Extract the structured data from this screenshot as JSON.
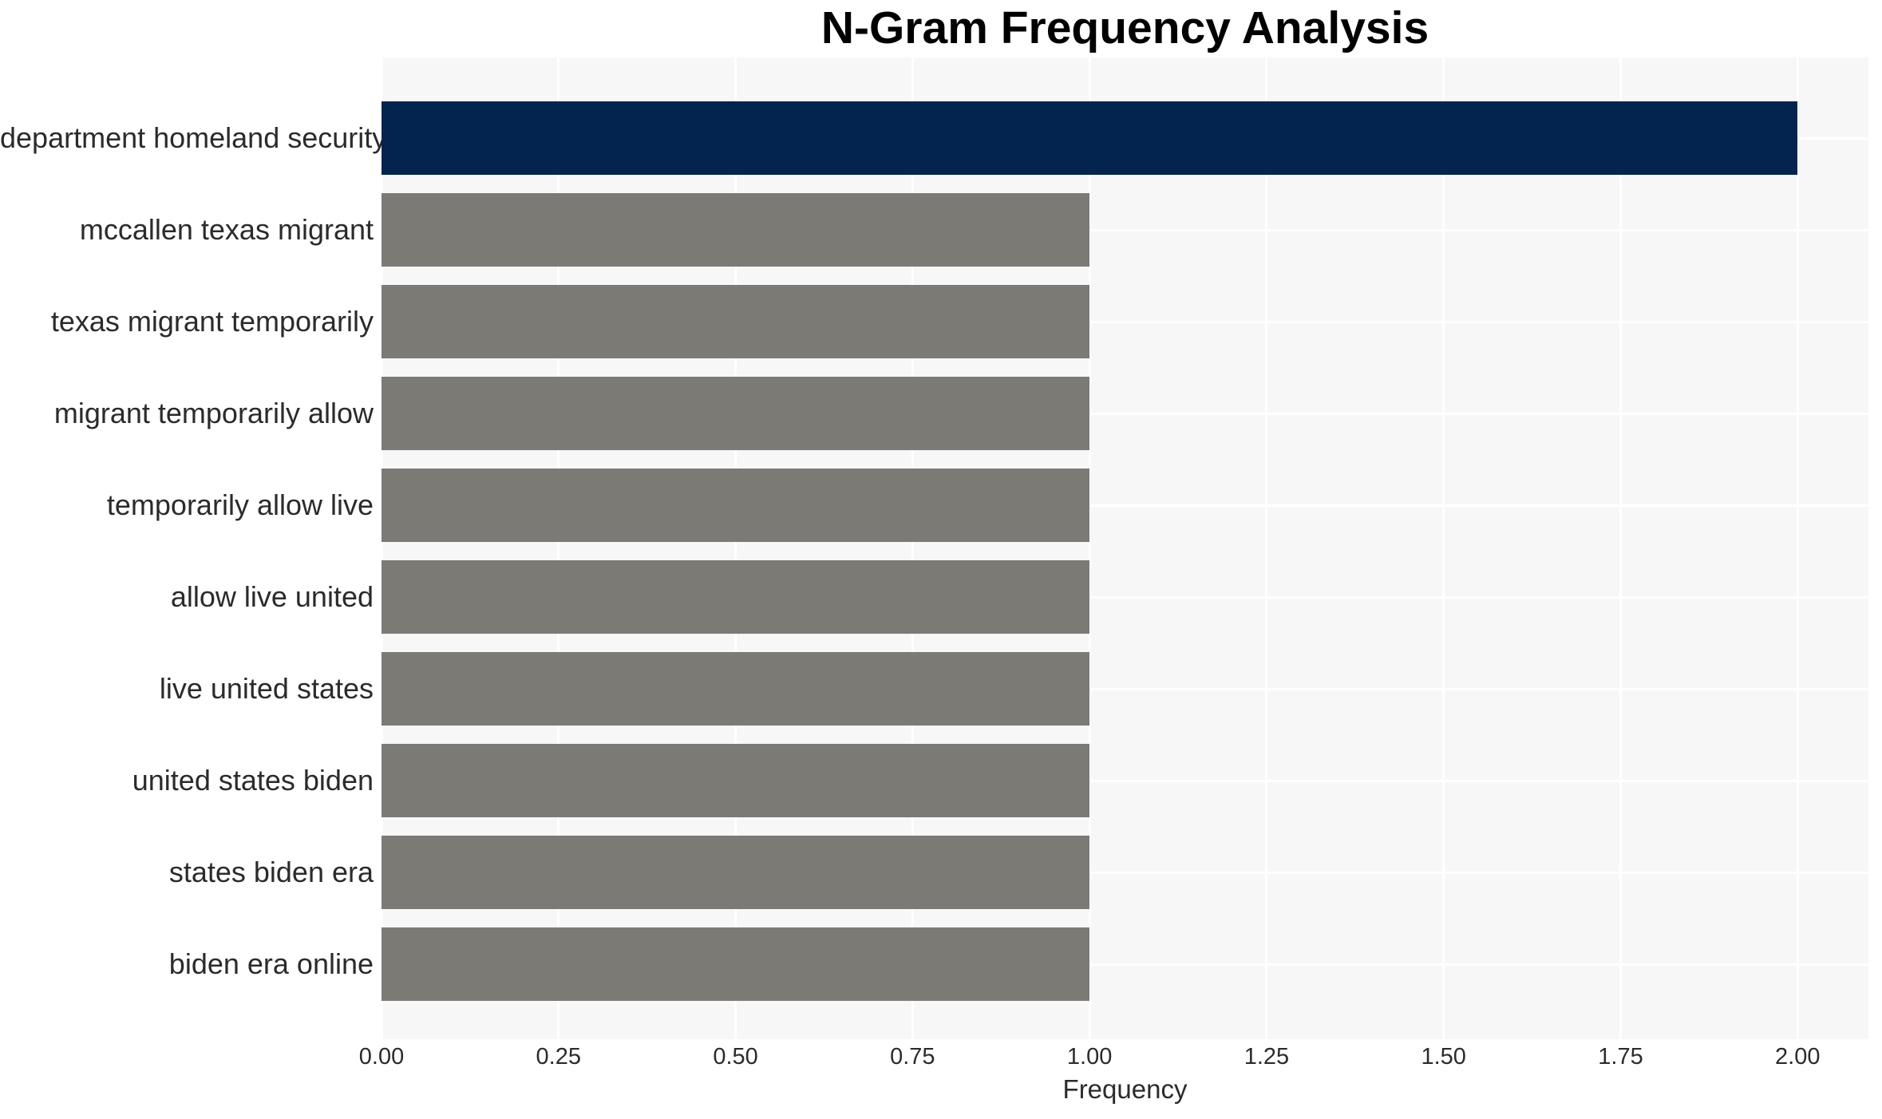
{
  "chart_data": {
    "type": "bar",
    "orientation": "horizontal",
    "title": "N-Gram Frequency Analysis",
    "xlabel": "Frequency",
    "ylabel": "",
    "categories": [
      "department homeland security",
      "mccallen texas migrant",
      "texas migrant temporarily",
      "migrant temporarily allow",
      "temporarily allow live",
      "allow live united",
      "live united states",
      "united states biden",
      "states biden era",
      "biden era online"
    ],
    "values": [
      2,
      1,
      1,
      1,
      1,
      1,
      1,
      1,
      1,
      1
    ],
    "bar_colors": [
      "#02244e",
      "#7b7a75",
      "#7b7a75",
      "#7b7a75",
      "#7b7a75",
      "#7b7a75",
      "#7b7a75",
      "#7b7a75",
      "#7b7a75",
      "#7b7a75"
    ],
    "xlim": [
      0,
      2.1
    ],
    "xticks": [
      "0.00",
      "0.25",
      "0.50",
      "0.75",
      "1.00",
      "1.25",
      "1.50",
      "1.75",
      "2.00"
    ],
    "xtick_values": [
      0,
      0.25,
      0.5,
      0.75,
      1.0,
      1.25,
      1.5,
      1.75,
      2.0
    ],
    "grid": true,
    "legend": false,
    "colors": {
      "highlight_bar": "#02244e",
      "default_bar": "#7b7a75",
      "plot_background": "#f7f7f7",
      "gridline": "#ffffff",
      "figure_background": "#ffffff",
      "text": "#2b2b2b",
      "title_text": "#000000"
    }
  }
}
